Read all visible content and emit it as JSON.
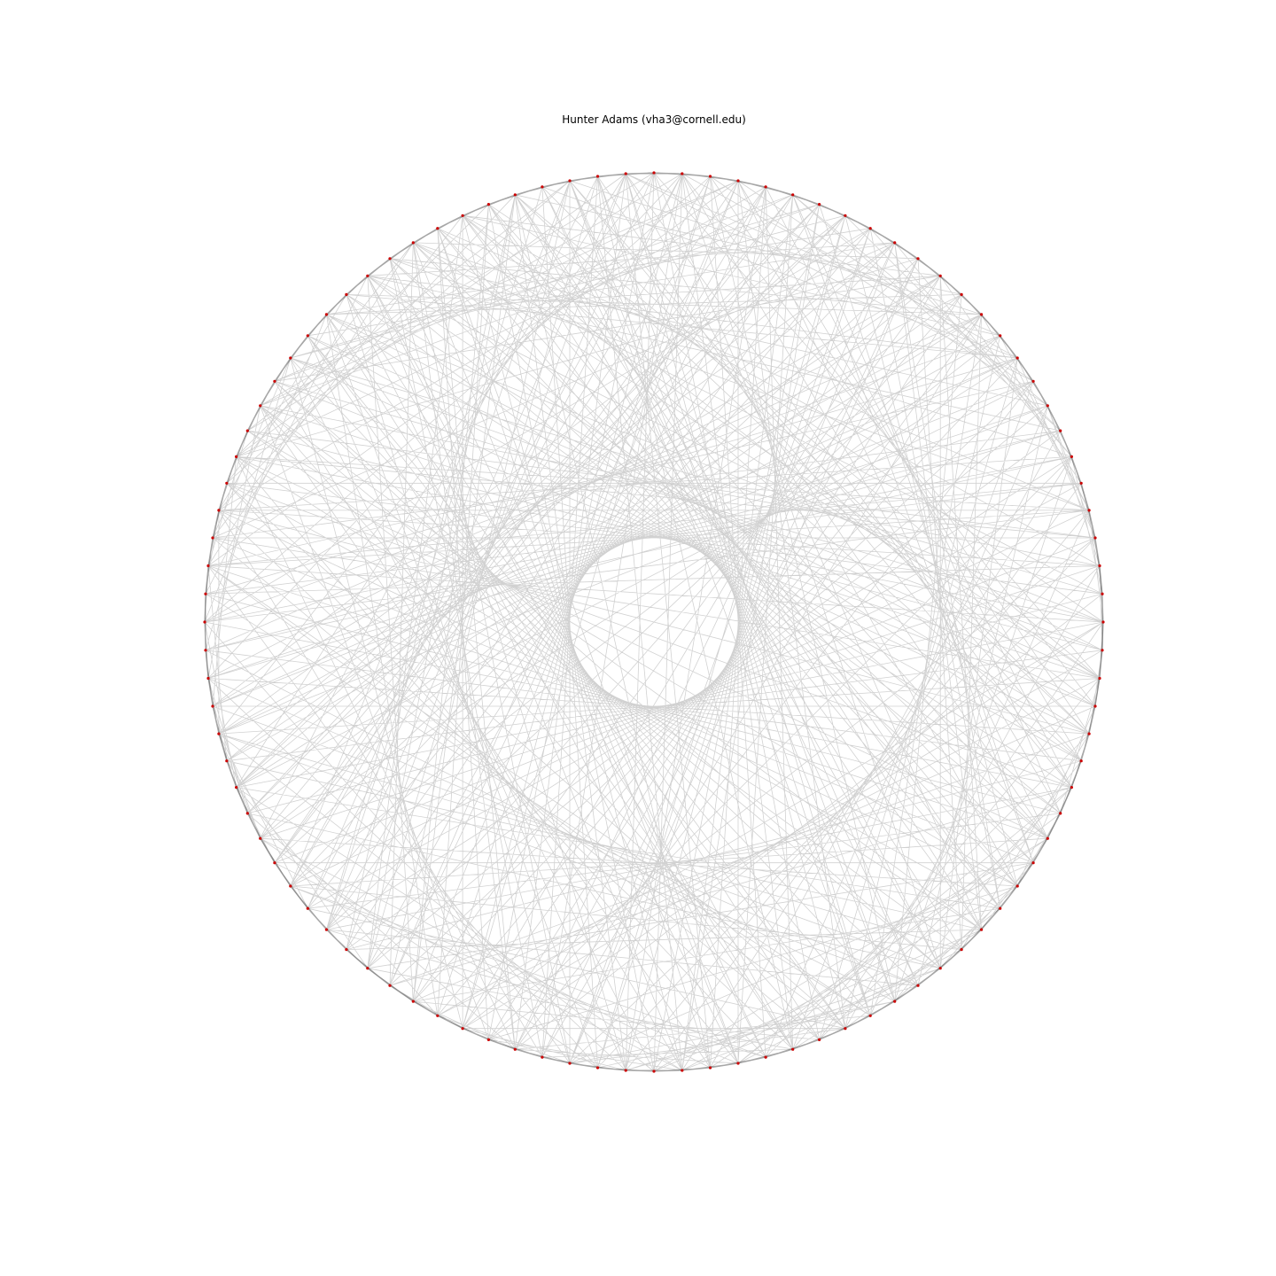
{
  "figure": {
    "title": "Hunter Adams (vha3@cornell.edu)"
  },
  "string_art": {
    "nail_count": 100,
    "nail_color": "#cc0000",
    "line_color": "#000000",
    "line_opacity": 0.18
  }
}
